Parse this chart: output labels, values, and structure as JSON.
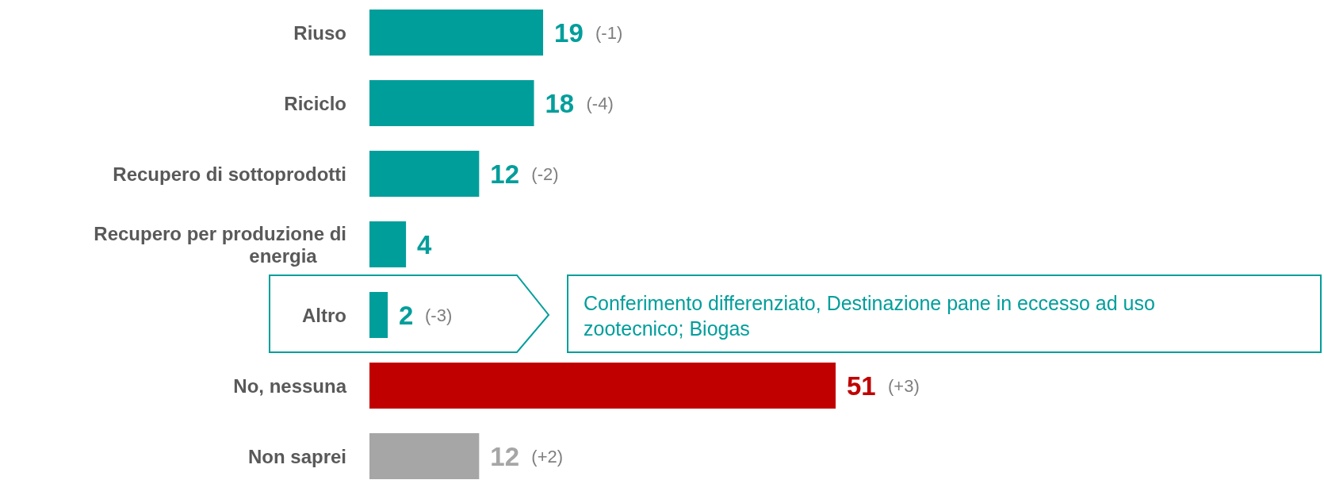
{
  "chart_data": {
    "type": "bar",
    "orientation": "horizontal",
    "relative": false,
    "categories": [
      "Riuso",
      "Riciclo",
      "Recupero di sottoprodotti",
      "Recupero per produzione di energia",
      "Altro",
      "No, nessuna",
      "Non saprei"
    ],
    "values": [
      19,
      18,
      12,
      4,
      2,
      51,
      12
    ],
    "colors": [
      "#009e9b",
      "#009e9b",
      "#009e9b",
      "#009e9b",
      "#009e9b",
      "#c00000",
      "#a6a6a6"
    ],
    "data_labels": true,
    "annotations": [
      {
        "text": "(-1)",
        "x": 19,
        "y": "Riuso"
      },
      {
        "text": "(-4)",
        "x": 18,
        "y": "Riciclo"
      },
      {
        "text": "(-2)",
        "x": 12,
        "y": "Recupero di sottoprodotti"
      },
      {
        "text": "(-3)",
        "x": 2,
        "y": "Altro"
      },
      {
        "text": "(+3)",
        "x": 51,
        "y": "No, nessuna"
      },
      {
        "text": "(+2)",
        "x": 12,
        "y": "Non saprei"
      },
      "Conferimento differenziato, Destinazione pane in eccesso ad uso zootecnico; Biogas"
    ],
    "tick_labels": "y"
  }
}
